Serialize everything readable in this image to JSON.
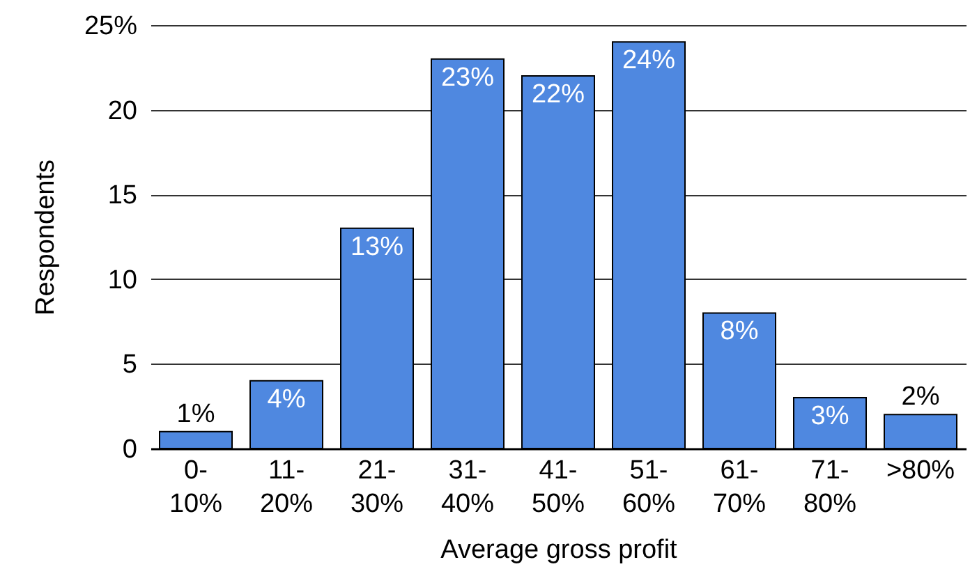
{
  "chart_data": {
    "type": "bar",
    "xlabel": "Average gross profit",
    "ylabel": "Respondents",
    "categories": [
      "0-10%",
      "11-20%",
      "21-30%",
      "31-40%",
      "41-50%",
      "51-60%",
      "61-70%",
      "71-80%",
      ">80%"
    ],
    "series": [
      {
        "color": "#4f88e0",
        "values": [
          1,
          4,
          13,
          23,
          22,
          24,
          8,
          3,
          2
        ]
      }
    ],
    "value_labels": [
      "1%",
      "4%",
      "13%",
      "23%",
      "22%",
      "24%",
      "8%",
      "3%",
      "2%"
    ],
    "ylim": [
      0,
      25
    ],
    "yticks": [
      0,
      5,
      10,
      15,
      20,
      {
        "value": 25,
        "label": "25%"
      }
    ],
    "grid": "y"
  }
}
